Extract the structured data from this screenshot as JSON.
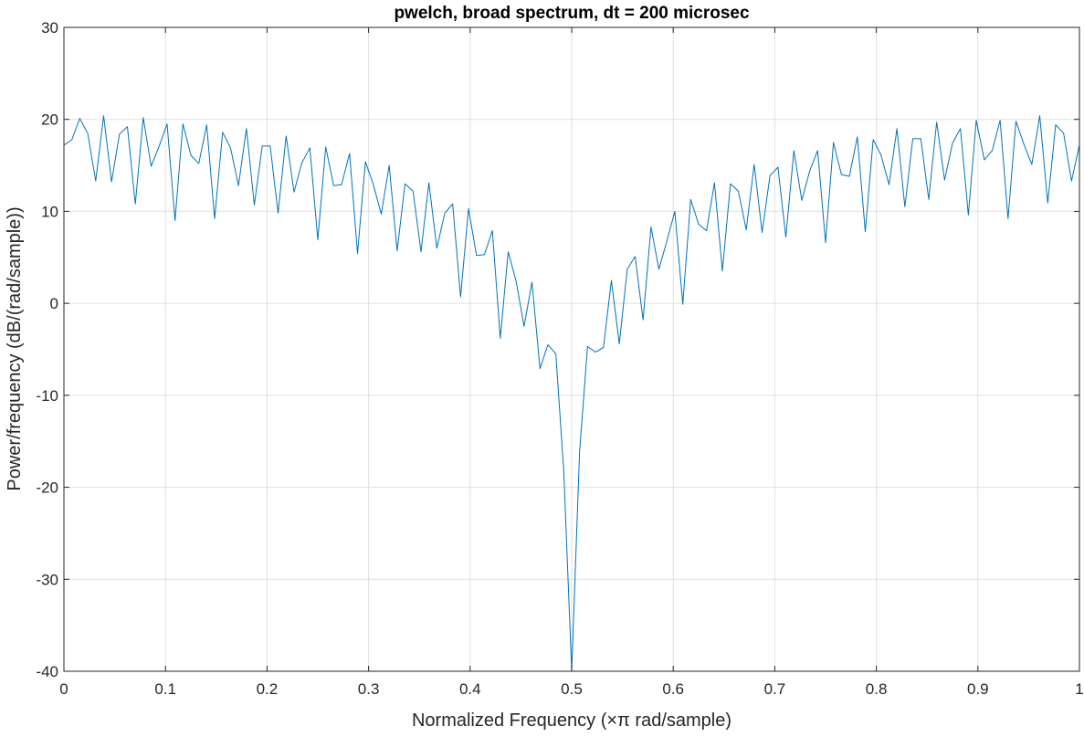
{
  "colors": {
    "line": "#0072BD",
    "grid": "#DFDFDF",
    "axis": "#262626",
    "background": "#FFFFFF"
  },
  "chart_data": {
    "type": "line",
    "title": "pwelch, broad spectrum, dt = 200 microsec",
    "xlabel": "Normalized Frequency  (×π rad/sample)",
    "ylabel": "Power/frequency (dB/(rad/sample))",
    "xlim": [
      0,
      1
    ],
    "ylim": [
      -40,
      30
    ],
    "xticks": [
      0,
      0.1,
      0.2,
      0.3,
      0.4,
      0.5,
      0.6,
      0.7,
      0.8,
      0.9,
      1
    ],
    "yticks": [
      -40,
      -30,
      -20,
      -10,
      0,
      10,
      20,
      30
    ],
    "xtick_labels": [
      "0",
      "0.1",
      "0.2",
      "0.3",
      "0.4",
      "0.5",
      "0.6",
      "0.7",
      "0.8",
      "0.9",
      "1"
    ],
    "ytick_labels": [
      "-40",
      "-30",
      "-20",
      "-10",
      "0",
      "10",
      "20",
      "30"
    ],
    "grid": true,
    "box": true,
    "series": [
      {
        "x": [
          0,
          0.0078,
          0.0156,
          0.0234,
          0.0313,
          0.0391,
          0.0469,
          0.0547,
          0.0625,
          0.0703,
          0.0781,
          0.0859,
          0.0938,
          0.1016,
          0.1094,
          0.1172,
          0.125,
          0.1328,
          0.1406,
          0.1484,
          0.1563,
          0.1641,
          0.1719,
          0.1797,
          0.1875,
          0.1953,
          0.2031,
          0.2109,
          0.2188,
          0.2266,
          0.2344,
          0.2422,
          0.25,
          0.2578,
          0.2656,
          0.2734,
          0.2813,
          0.2891,
          0.2969,
          0.3047,
          0.3125,
          0.3203,
          0.3281,
          0.3359,
          0.3438,
          0.3516,
          0.3594,
          0.3672,
          0.375,
          0.3828,
          0.3906,
          0.3984,
          0.4063,
          0.4141,
          0.4219,
          0.4297,
          0.4375,
          0.4453,
          0.4531,
          0.4609,
          0.4688,
          0.4766,
          0.4844,
          0.4922,
          0.5,
          0.5078,
          0.5156,
          0.5234,
          0.5313,
          0.5391,
          0.5469,
          0.5547,
          0.5625,
          0.5703,
          0.5781,
          0.5859,
          0.5938,
          0.6016,
          0.6094,
          0.6172,
          0.625,
          0.6328,
          0.6406,
          0.6484,
          0.6563,
          0.6641,
          0.6719,
          0.6797,
          0.6875,
          0.6953,
          0.7031,
          0.7109,
          0.7188,
          0.7266,
          0.7344,
          0.7422,
          0.75,
          0.7578,
          0.7656,
          0.7734,
          0.7813,
          0.7891,
          0.7969,
          0.8047,
          0.8125,
          0.8203,
          0.8281,
          0.8359,
          0.8438,
          0.8516,
          0.8594,
          0.8672,
          0.875,
          0.8828,
          0.8906,
          0.8984,
          0.9063,
          0.9141,
          0.9219,
          0.9297,
          0.9375,
          0.9453,
          0.9531,
          0.9609,
          0.9688,
          0.9766,
          0.9844,
          0.9922,
          1
        ],
        "y": [
          17.2,
          17.8,
          20.1,
          18.5,
          13.3,
          20.4,
          13.2,
          18.4,
          19.2,
          10.8,
          20.2,
          14.9,
          17.1,
          19.5,
          9.0,
          19.5,
          16.1,
          15.2,
          19.4,
          9.2,
          18.6,
          16.9,
          12.8,
          19.0,
          10.7,
          17.1,
          17.1,
          9.8,
          18.2,
          12.1,
          15.3,
          16.9,
          6.9,
          17.0,
          12.8,
          12.9,
          16.3,
          5.4,
          15.4,
          12.9,
          9.7,
          15.0,
          5.7,
          13.0,
          12.2,
          5.6,
          13.1,
          6.0,
          9.8,
          10.8,
          0.7,
          10.3,
          5.2,
          5.3,
          7.9,
          -3.8,
          5.6,
          2.4,
          -2.5,
          2.3,
          -7.1,
          -4.5,
          -5.5,
          -18.2,
          -40.0,
          -16.1,
          -4.7,
          -5.3,
          -4.8,
          2.5,
          -4.4,
          3.7,
          5.1,
          -1.8,
          8.3,
          3.7,
          6.8,
          10.0,
          -0.1,
          11.3,
          8.6,
          7.9,
          13.1,
          3.5,
          13.0,
          12.2,
          8.0,
          15.1,
          7.7,
          13.9,
          14.8,
          7.2,
          16.6,
          11.2,
          14.4,
          16.6,
          6.6,
          17.5,
          14.0,
          13.8,
          18.1,
          7.8,
          17.8,
          16.1,
          12.9,
          19.0,
          10.5,
          17.9,
          17.9,
          11.3,
          19.7,
          13.4,
          17.4,
          19.0,
          9.6,
          19.9,
          15.6,
          16.6,
          19.9,
          9.2,
          19.8,
          17.3,
          15.1,
          20.4,
          10.9,
          19.4,
          18.5,
          13.3,
          17.2
        ]
      }
    ]
  }
}
